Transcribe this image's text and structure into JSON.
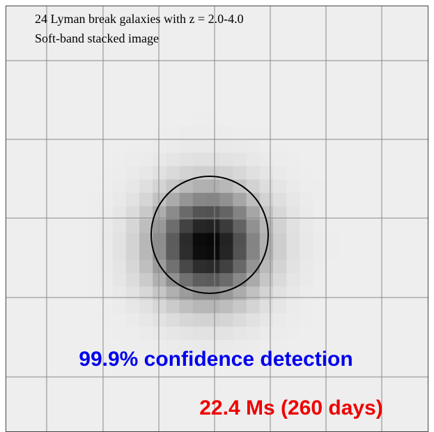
{
  "header": {
    "lines": [
      "24 Lyman break galaxies with z = 2.0-4.0",
      "Soft-band stacked image"
    ]
  },
  "annotations": {
    "detection": "99.9% confidence detection",
    "exposure": "22.4 Ms (260 days)"
  }
}
